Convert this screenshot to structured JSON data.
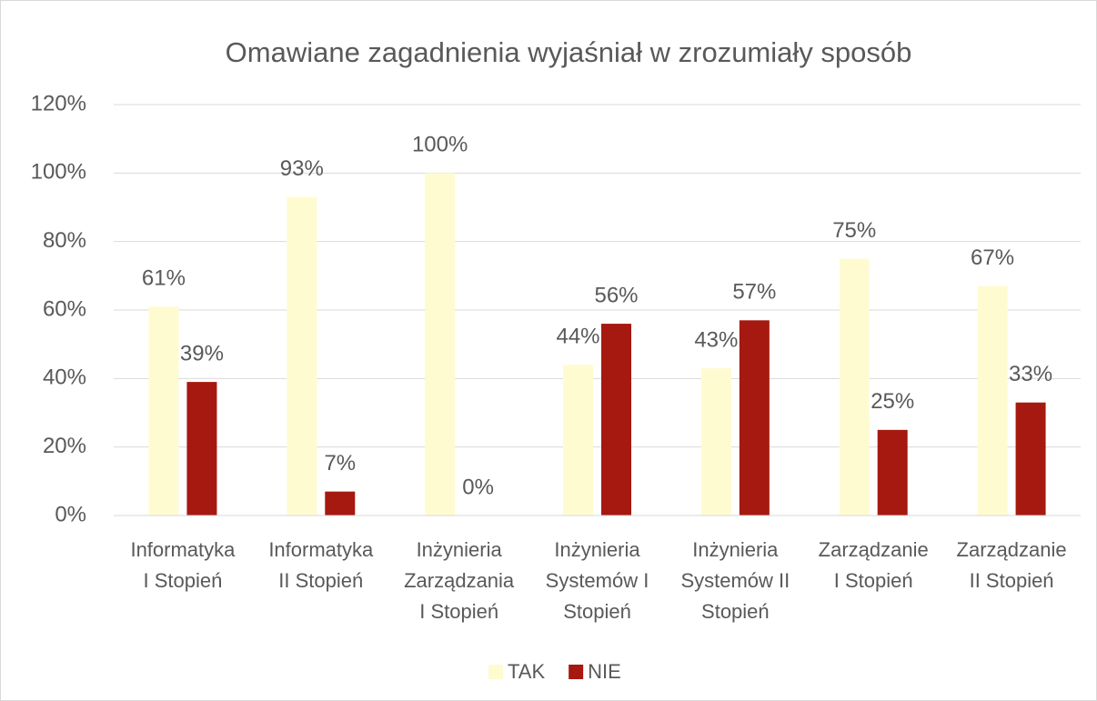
{
  "chart_data": {
    "type": "bar",
    "title": "Omawiane zagadnienia wyjaśniał w zrozumiały sposób",
    "categories": [
      [
        "Informatyka",
        "I Stopień"
      ],
      [
        "Informatyka",
        "II Stopień"
      ],
      [
        "Inżynieria",
        "Zarządzania",
        "I  Stopień"
      ],
      [
        "Inżynieria",
        "Systemów I",
        "Stopień"
      ],
      [
        "Inżynieria",
        "Systemów II",
        "Stopień"
      ],
      [
        "Zarządzanie",
        "I Stopień"
      ],
      [
        "Zarządzanie",
        "II Stopień"
      ]
    ],
    "series": [
      {
        "name": "TAK",
        "color": "#fffbd0",
        "values": [
          61,
          93,
          100,
          44,
          43,
          75,
          67
        ],
        "value_labels": [
          "61%",
          "93%",
          "100%",
          "44%",
          "43%",
          "75%",
          "67%"
        ]
      },
      {
        "name": "NIE",
        "color": "#a61910",
        "values": [
          39,
          7,
          0,
          56,
          57,
          25,
          33
        ],
        "value_labels": [
          "39%",
          "7%",
          "0%",
          "56%",
          "57%",
          "25%",
          "33%"
        ]
      }
    ],
    "ylim": [
      0,
      120
    ],
    "yticks": [
      {
        "value": 0,
        "label": "0%"
      },
      {
        "value": 20,
        "label": "20%"
      },
      {
        "value": 40,
        "label": "40%"
      },
      {
        "value": 60,
        "label": "60%"
      },
      {
        "value": 80,
        "label": "80%"
      },
      {
        "value": 100,
        "label": "100%"
      },
      {
        "value": 120,
        "label": "120%"
      }
    ],
    "grid": true,
    "legend": "bottom"
  }
}
